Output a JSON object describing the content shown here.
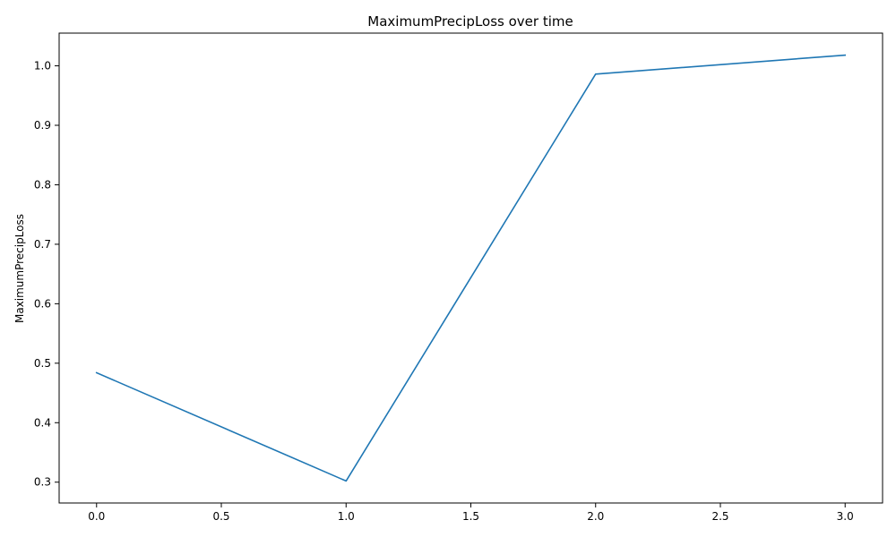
{
  "chart_data": {
    "type": "line",
    "title": "MaximumPrecipLoss over time",
    "xlabel": "",
    "ylabel": "MaximumPrecipLoss",
    "xlim": [
      -0.15,
      3.15
    ],
    "ylim": [
      0.265,
      1.055
    ],
    "x_ticks": [
      0.0,
      0.5,
      1.0,
      1.5,
      2.0,
      2.5,
      3.0
    ],
    "x_tick_labels": [
      "0.0",
      "0.5",
      "1.0",
      "1.5",
      "2.0",
      "2.5",
      "3.0"
    ],
    "y_ticks": [
      0.3,
      0.4,
      0.5,
      0.6,
      0.7,
      0.8,
      0.9,
      1.0
    ],
    "y_tick_labels": [
      "0.3",
      "0.4",
      "0.5",
      "0.6",
      "0.7",
      "0.8",
      "0.9",
      "1.0"
    ],
    "grid": false,
    "legend": "none",
    "series": [
      {
        "color": "#1f77b4",
        "x": [
          0,
          1,
          2,
          3
        ],
        "y": [
          0.484,
          0.302,
          0.986,
          1.018
        ]
      }
    ]
  }
}
